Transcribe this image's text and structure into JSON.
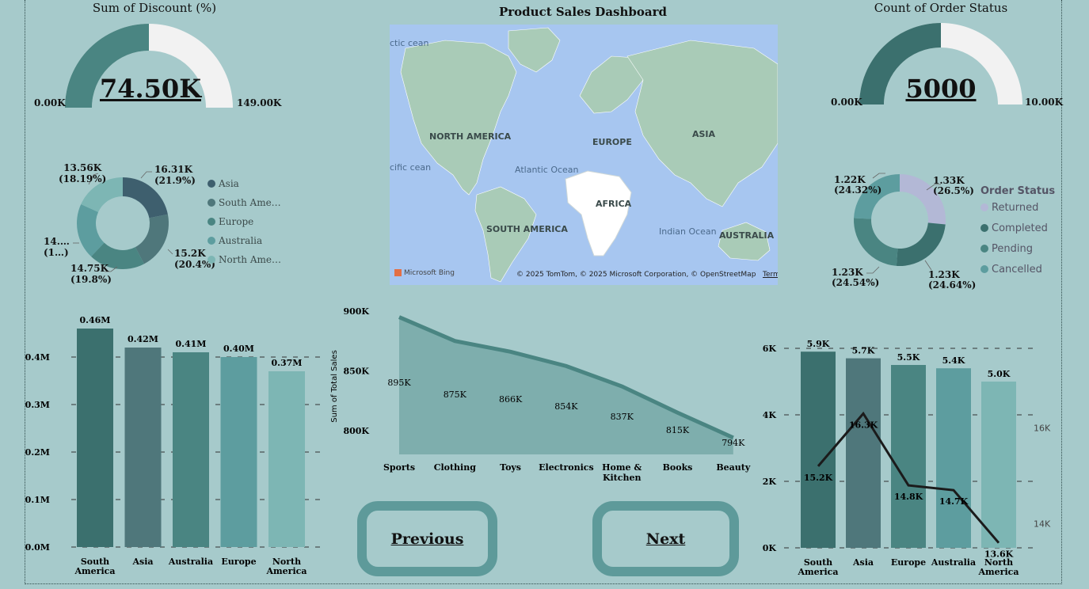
{
  "dashboard_title": "Product Sales Dashboard",
  "colors": {
    "background": "#a6cacb",
    "teal1": "#3b706e",
    "teal2": "#4f777b",
    "teal3": "#4a8582",
    "teal4": "#5d9d9f",
    "teal5": "#7db6b4",
    "gauge_empty": "#f2f2f2",
    "returned": "#b3b8d6"
  },
  "gauge_discount": {
    "title": "Sum of Discount (%)",
    "value_label": "74.50K",
    "min_label": "0.00K",
    "max_label": "149.00K",
    "fill_fraction": 0.5
  },
  "gauge_orders": {
    "title": "Count of Order Status",
    "value_label": "5000",
    "min_label": "0.00K",
    "max_label": "10.00K",
    "fill_fraction": 0.5
  },
  "donut_region": {
    "legend": [
      "Asia",
      "South Ame…",
      "Europe",
      "Australia",
      "North Ame…"
    ],
    "labels": [
      {
        "v": "16.31K",
        "p": "(21.9%)"
      },
      {
        "v": "15.2K",
        "p": "(20.4%)"
      },
      {
        "v": "14.75K",
        "p": "(19.8%)"
      },
      {
        "v": "14.…",
        "p": "(1…)"
      },
      {
        "v": "13.56K",
        "p": "(18.19%)"
      }
    ]
  },
  "donut_status": {
    "legend_title": "Order Status",
    "legend": [
      "Returned",
      "Completed",
      "Pending",
      "Cancelled"
    ],
    "labels": [
      {
        "v": "1.33K",
        "p": "(26.5%)"
      },
      {
        "v": "1.23K",
        "p": "(24.64%)"
      },
      {
        "v": "1.23K",
        "p": "(24.54%)"
      },
      {
        "v": "1.22K",
        "p": "(24.32%)"
      }
    ]
  },
  "map": {
    "labels": {
      "north_america": "NORTH AMERICA",
      "south_america": "SOUTH AMERICA",
      "europe": "EUROPE",
      "asia": "ASIA",
      "africa": "AFRICA",
      "australia": "AUSTRALIA",
      "atlantic": "Atlantic Ocean",
      "indian": "Indian Ocean",
      "arctic": "ctic cean",
      "pacific": "cific cean"
    },
    "attribution": "© 2025 TomTom, © 2025 Microsoft Corporation, © OpenStreetMap",
    "terms": "Terms",
    "bing": "Microsoft Bing"
  },
  "buttons": {
    "previous": "Previous",
    "next": "Next"
  },
  "chart_data": [
    {
      "type": "bar",
      "categories": [
        "South America",
        "Asia",
        "Australia",
        "Europe",
        "North America"
      ],
      "values": [
        0.46,
        0.42,
        0.41,
        0.4,
        0.37
      ],
      "data_labels": [
        "0.46M",
        "0.42M",
        "0.41M",
        "0.40M",
        "0.37M"
      ],
      "ylim": [
        0,
        0.5
      ],
      "yticks": [
        "0.0M",
        "0.1M",
        "0.2M",
        "0.3M",
        "0.4M"
      ],
      "grid": true
    },
    {
      "type": "area",
      "categories": [
        "Sports",
        "Clothing",
        "Toys",
        "Electronics",
        "Home & Kitchen",
        "Books",
        "Beauty"
      ],
      "values": [
        895,
        875,
        866,
        854,
        837,
        815,
        794
      ],
      "data_labels": [
        "895K",
        "875K",
        "866K",
        "854K",
        "837K",
        "815K",
        "794K"
      ],
      "ylabel": "Sum of Total Sales",
      "ylim": [
        780,
        900
      ],
      "yticks": [
        "800K",
        "850K",
        "900K"
      ]
    },
    {
      "type": "bar",
      "categories": [
        "South America",
        "Asia",
        "Europe",
        "Australia",
        "North America"
      ],
      "values": [
        5.9,
        5.7,
        5.5,
        5.4,
        5.0
      ],
      "data_labels": [
        "5.9K",
        "5.7K",
        "5.5K",
        "5.4K",
        "5.0K"
      ],
      "ylim": [
        0,
        6.6
      ],
      "yticks": [
        "0K",
        "2K",
        "4K",
        "6K"
      ],
      "line_values": [
        15.2,
        16.3,
        14.8,
        14.7,
        13.6
      ],
      "line_labels": [
        "15.2K",
        "16.3K",
        "14.8K",
        "14.7K",
        "13.6K"
      ],
      "line_ylim": [
        13,
        17
      ],
      "line_yticks": [
        "14K",
        "16K"
      ],
      "grid": true
    }
  ]
}
